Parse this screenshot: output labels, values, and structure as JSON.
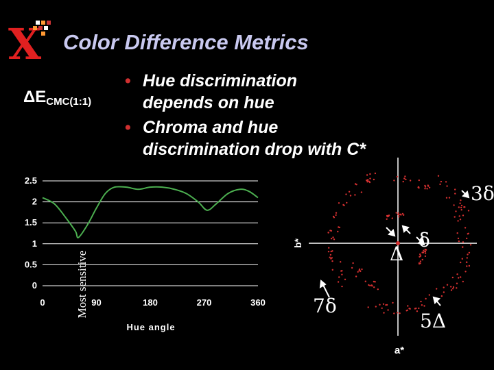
{
  "header": {
    "title": "Color Difference Metrics",
    "logo_letter": "X",
    "logo_colors": [
      "#ff0000",
      "#cc3333",
      "#ff9933",
      "#ffffff"
    ]
  },
  "metric_label": {
    "main": "ΔE",
    "sub": "CMC(1:1)"
  },
  "bullets": [
    {
      "line1": "Hue discrimination",
      "line2": "depends on hue"
    },
    {
      "line1": "Chroma and hue",
      "line2": "discrimination drop with C*"
    }
  ],
  "chart_data": {
    "type": "line",
    "xlabel": "Hue angle",
    "ylabel": "Most sensitive",
    "x_ticks": [
      "0",
      "90",
      "180",
      "270",
      "360"
    ],
    "y_ticks": [
      "0",
      "0.5",
      "1",
      "1.5",
      "2",
      "2.5"
    ],
    "xlim": [
      0,
      360
    ],
    "ylim": [
      0,
      2.5
    ],
    "series": [
      {
        "color": "#4caf50",
        "x": [
          0,
          20,
          40,
          55,
          60,
          75,
          90,
          105,
          120,
          140,
          160,
          180,
          200,
          220,
          240,
          260,
          275,
          290,
          310,
          330,
          345,
          360
        ],
        "y": [
          2.1,
          1.95,
          1.6,
          1.3,
          1.15,
          1.45,
          1.85,
          2.2,
          2.35,
          2.35,
          2.3,
          2.35,
          2.35,
          2.3,
          2.2,
          2.0,
          1.8,
          1.95,
          2.2,
          2.3,
          2.25,
          2.1
        ]
      }
    ]
  },
  "scatter_panel": {
    "axis_x_label": "a*",
    "axis_y_label": "b*",
    "dot_color": "#d43030",
    "annotations": [
      "3δ",
      "δ",
      "Δ",
      "7δ",
      "5Δ"
    ]
  }
}
